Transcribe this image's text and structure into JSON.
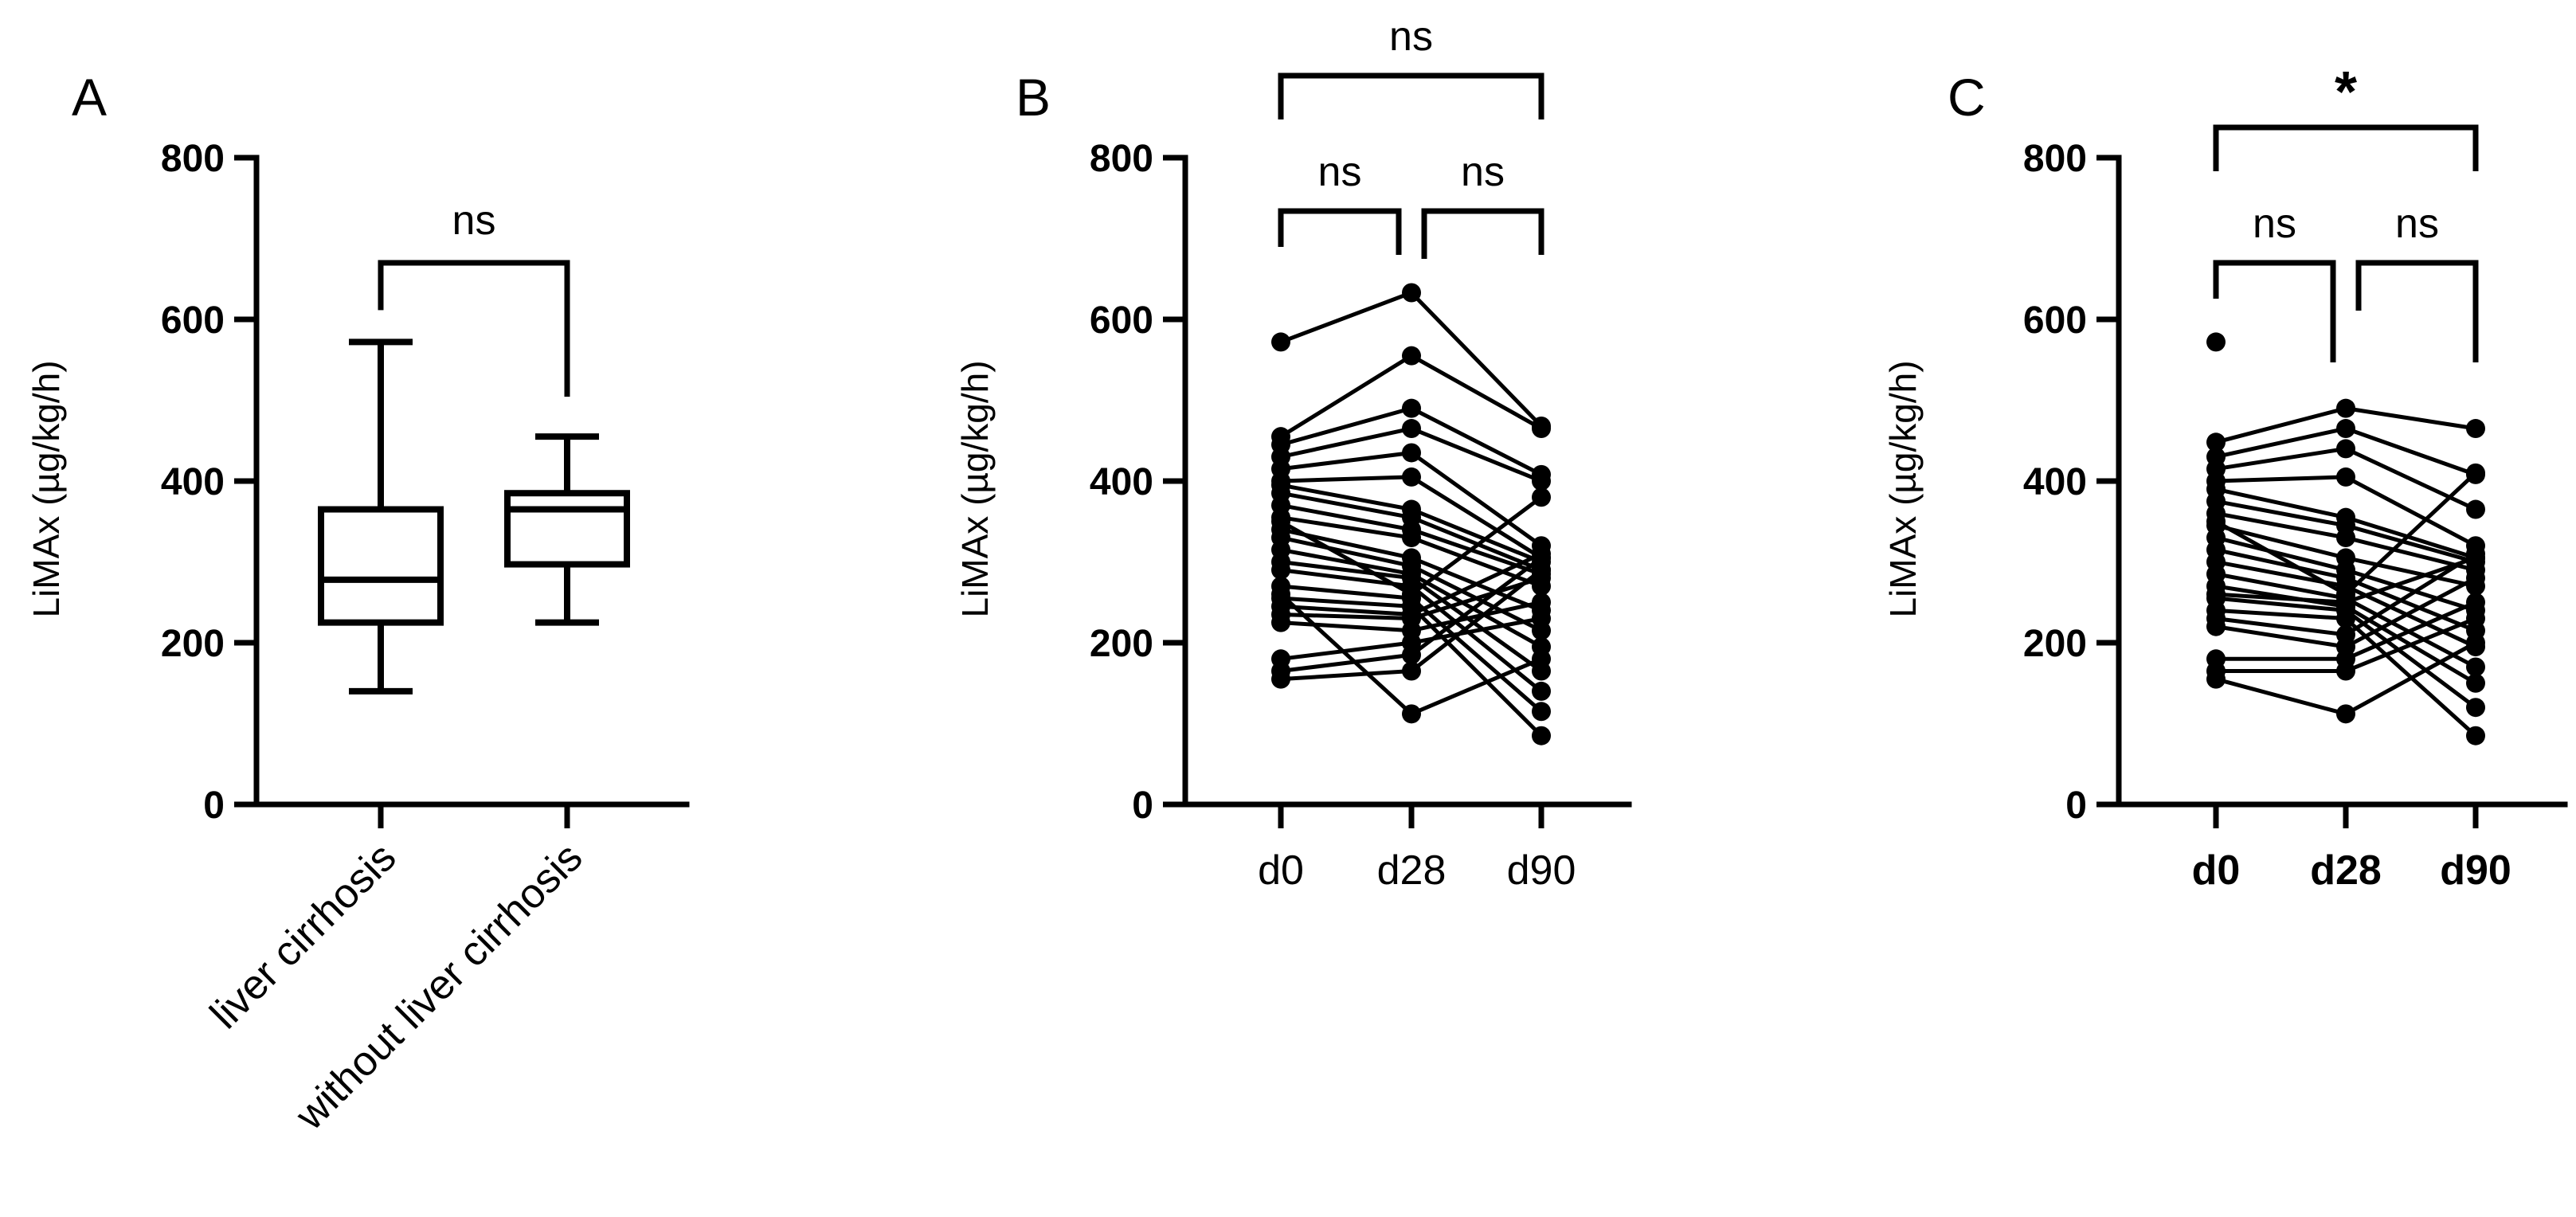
{
  "chart_data": [
    {
      "panel": "A",
      "type": "box",
      "ylabel": "LiMAx (µg/kg/h)",
      "ylim": [
        0,
        800
      ],
      "yticks": [
        "0",
        "200",
        "400",
        "600",
        "800"
      ],
      "categories": [
        "liver cirrhosis",
        "without liver cirrhosis"
      ],
      "boxes": [
        {
          "min": 140,
          "q1": 225,
          "median": 278,
          "q3": 365,
          "max": 572
        },
        {
          "min": 225,
          "q1": 297,
          "median": 365,
          "q3": 385,
          "max": 455
        }
      ],
      "significance": [
        {
          "from": 0,
          "to": 1,
          "label": "ns"
        }
      ]
    },
    {
      "panel": "B",
      "type": "line",
      "ylabel": "LiMAx (µg/kg/h)",
      "ylim": [
        0,
        800
      ],
      "yticks": [
        "0",
        "200",
        "400",
        "600",
        "800"
      ],
      "categories": [
        "d0",
        "d28",
        "d90"
      ],
      "paired": [
        [
          572,
          633,
          468
        ],
        [
          455,
          555,
          465
        ],
        [
          445,
          490,
          408
        ],
        [
          430,
          465,
          400
        ],
        [
          415,
          435,
          320
        ],
        [
          400,
          405,
          305
        ],
        [
          395,
          365,
          300
        ],
        [
          385,
          355,
          290
        ],
        [
          370,
          340,
          285
        ],
        [
          355,
          330,
          270
        ],
        [
          340,
          305,
          240
        ],
        [
          330,
          295,
          215
        ],
        [
          315,
          285,
          195
        ],
        [
          300,
          280,
          165
        ],
        [
          290,
          270,
          140
        ],
        [
          270,
          255,
          115
        ],
        [
          255,
          245,
          85
        ],
        [
          245,
          235,
          310
        ],
        [
          235,
          230,
          280
        ],
        [
          225,
          215,
          250
        ],
        [
          180,
          200,
          230
        ],
        [
          165,
          185,
          305
        ],
        [
          155,
          165,
          290
        ],
        [
          260,
          112,
          180
        ],
        [
          350,
          260,
          380
        ]
      ],
      "significance": [
        {
          "from": 0,
          "to": 2,
          "label": "ns"
        },
        {
          "from": 0,
          "to": 1,
          "label": "ns"
        },
        {
          "from": 1,
          "to": 2,
          "label": "ns"
        }
      ]
    },
    {
      "panel": "C",
      "type": "line",
      "ylabel": "LiMAx (µg/kg/h)",
      "ylim": [
        0,
        800
      ],
      "yticks": [
        "0",
        "200",
        "400",
        "600",
        "800"
      ],
      "categories": [
        "d0",
        "d28",
        "d90"
      ],
      "paired": [
        [
          572,
          null,
          null
        ],
        [
          448,
          490,
          465
        ],
        [
          430,
          465,
          408
        ],
        [
          415,
          440,
          365
        ],
        [
          400,
          405,
          320
        ],
        [
          390,
          355,
          305
        ],
        [
          375,
          345,
          300
        ],
        [
          360,
          330,
          290
        ],
        [
          345,
          305,
          270
        ],
        [
          330,
          290,
          240
        ],
        [
          315,
          280,
          215
        ],
        [
          300,
          270,
          195
        ],
        [
          285,
          255,
          170
        ],
        [
          270,
          245,
          150
        ],
        [
          255,
          240,
          120
        ],
        [
          240,
          230,
          85
        ],
        [
          230,
          210,
          310
        ],
        [
          220,
          195,
          280
        ],
        [
          180,
          180,
          250
        ],
        [
          165,
          165,
          230
        ],
        [
          155,
          112,
          200
        ],
        [
          260,
          250,
          305
        ],
        [
          350,
          260,
          410
        ]
      ],
      "significance": [
        {
          "from": 0,
          "to": 2,
          "label": "*"
        },
        {
          "from": 0,
          "to": 1,
          "label": "ns"
        },
        {
          "from": 1,
          "to": 2,
          "label": "ns"
        }
      ]
    }
  ]
}
